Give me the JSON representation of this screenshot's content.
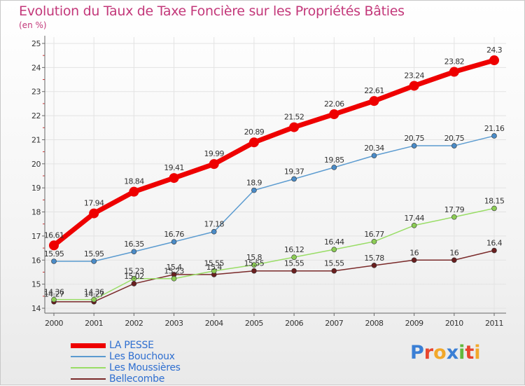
{
  "title": "Evolution du Taux de Taxe Foncière sur les Propriétés Bâties",
  "subtitle": "(en %)",
  "logo": {
    "text": "Proxiti",
    "colors": [
      "#3a7fd5",
      "#e8462e",
      "#f2a82a",
      "#3a7fd5",
      "#62b83c",
      "#e8462e",
      "#f2a82a"
    ]
  },
  "chart_data": {
    "type": "line",
    "x": [
      "2000",
      "2001",
      "2002",
      "2003",
      "2004",
      "2005",
      "2006",
      "2007",
      "2008",
      "2009",
      "2010",
      "2011"
    ],
    "ylim": [
      14,
      25
    ],
    "yticks": [
      "14",
      "15",
      "16",
      "17",
      "18",
      "19",
      "20",
      "21",
      "22",
      "23",
      "24",
      "25"
    ],
    "grid": true,
    "legend_position": "bottom-left",
    "series": [
      {
        "name": "LA PESSE",
        "color": "#ee0000",
        "values": [
          16.61,
          17.94,
          18.84,
          19.41,
          19.99,
          20.89,
          21.52,
          22.06,
          22.61,
          23.24,
          23.82,
          24.3
        ],
        "labels": [
          "16.61",
          "17.94",
          "18.84",
          "19.41",
          "19.99",
          "20.89",
          "21.52",
          "22.06",
          "22.61",
          "23.24",
          "23.82",
          "24.3"
        ]
      },
      {
        "name": "Les Bouchoux",
        "color": "#5b9bd0",
        "values": [
          15.95,
          15.95,
          16.35,
          16.76,
          17.18,
          18.9,
          19.37,
          19.85,
          20.34,
          20.75,
          20.75,
          21.16
        ],
        "labels": [
          "15.95",
          "15.95",
          "16.35",
          "16.76",
          "17.18",
          "18.9",
          "19.37",
          "19.85",
          "20.34",
          "20.75",
          "20.75",
          "21.16"
        ]
      },
      {
        "name": "Les Moussières",
        "color": "#99dd66",
        "values": [
          14.36,
          14.36,
          15.23,
          15.23,
          15.55,
          15.8,
          16.12,
          16.44,
          16.77,
          17.44,
          17.79,
          18.15
        ],
        "labels": [
          "14.36",
          "14.36",
          "15.23",
          "15.23",
          "15.55",
          "15.8",
          "16.12",
          "16.44",
          "16.77",
          "17.44",
          "17.79",
          "18.15"
        ]
      },
      {
        "name": "Bellecombe",
        "color": "#7a2a2a",
        "values": [
          14.27,
          14.27,
          15.02,
          15.4,
          15.4,
          15.55,
          15.55,
          15.55,
          15.78,
          16,
          16,
          16.4
        ],
        "labels": [
          "14.27",
          "14.27",
          "15.02",
          "15.4",
          "15.4",
          "15.55",
          "15.55",
          "15.55",
          "15.78",
          "16",
          "16",
          "16.4"
        ]
      }
    ]
  }
}
